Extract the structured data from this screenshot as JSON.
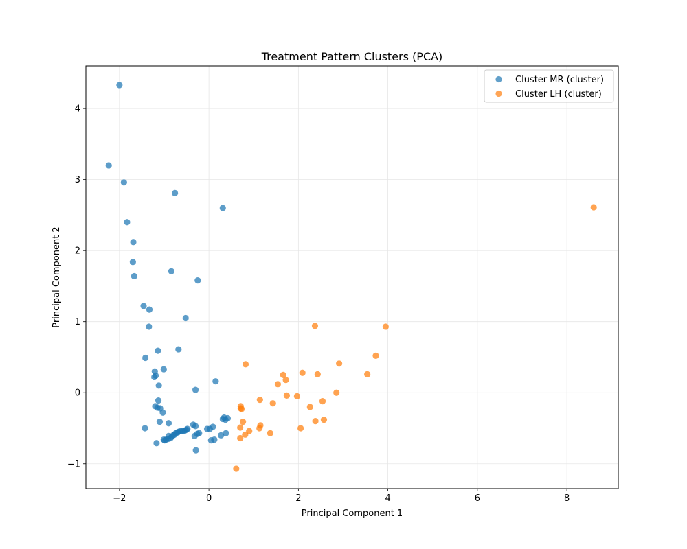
{
  "chart_data": {
    "type": "scatter",
    "title": "Treatment Pattern Clusters (PCA)",
    "xlabel": "Principal Component 1",
    "ylabel": "Principal Component 2",
    "xlim": [
      -2.75,
      9.15
    ],
    "ylim": [
      -1.35,
      4.6
    ],
    "xticks": [
      -2,
      0,
      2,
      4,
      6,
      8
    ],
    "yticks": [
      -1,
      0,
      1,
      2,
      3,
      4
    ],
    "xtick_labels": [
      "−2",
      "0",
      "2",
      "4",
      "6",
      "8"
    ],
    "ytick_labels": [
      "−1",
      "0",
      "1",
      "2",
      "3",
      "4"
    ],
    "grid": true,
    "legend_position": "top-right",
    "series": [
      {
        "name": "Cluster MR (cluster)",
        "color": "#1f77b4",
        "points": [
          [
            -2.0,
            4.33
          ],
          [
            -2.24,
            3.2
          ],
          [
            -1.9,
            2.96
          ],
          [
            -0.76,
            2.81
          ],
          [
            0.31,
            2.6
          ],
          [
            -1.83,
            2.4
          ],
          [
            -1.69,
            2.12
          ],
          [
            -1.7,
            1.84
          ],
          [
            -1.67,
            1.64
          ],
          [
            -0.84,
            1.71
          ],
          [
            -0.25,
            1.58
          ],
          [
            -1.46,
            1.22
          ],
          [
            -1.33,
            1.17
          ],
          [
            -1.34,
            0.93
          ],
          [
            -0.52,
            1.05
          ],
          [
            -0.68,
            0.61
          ],
          [
            -1.14,
            0.59
          ],
          [
            -1.42,
            0.49
          ],
          [
            -1.01,
            0.33
          ],
          [
            -1.21,
            0.3
          ],
          [
            -1.22,
            0.22
          ],
          [
            -1.19,
            0.24
          ],
          [
            0.15,
            0.16
          ],
          [
            -0.3,
            0.04
          ],
          [
            -1.12,
            0.1
          ],
          [
            -1.13,
            -0.11
          ],
          [
            -1.2,
            -0.19
          ],
          [
            -1.15,
            -0.21
          ],
          [
            -1.09,
            -0.22
          ],
          [
            -1.03,
            -0.28
          ],
          [
            0.34,
            -0.35
          ],
          [
            0.31,
            -0.37
          ],
          [
            0.37,
            -0.38
          ],
          [
            0.42,
            -0.36
          ],
          [
            -1.1,
            -0.41
          ],
          [
            -0.9,
            -0.43
          ],
          [
            -0.35,
            -0.45
          ],
          [
            -0.3,
            -0.47
          ],
          [
            -1.43,
            -0.5
          ],
          [
            0.09,
            -0.48
          ],
          [
            -0.04,
            -0.51
          ],
          [
            0.02,
            -0.51
          ],
          [
            -0.48,
            -0.51
          ],
          [
            -0.5,
            -0.52
          ],
          [
            -0.53,
            -0.53
          ],
          [
            -0.56,
            -0.54
          ],
          [
            -0.6,
            -0.54
          ],
          [
            -0.64,
            -0.54
          ],
          [
            -0.68,
            -0.55
          ],
          [
            -0.7,
            -0.56
          ],
          [
            -0.74,
            -0.57
          ],
          [
            -0.77,
            -0.59
          ],
          [
            -0.8,
            -0.6
          ],
          [
            -0.26,
            -0.58
          ],
          [
            -0.22,
            -0.57
          ],
          [
            -0.32,
            -0.61
          ],
          [
            0.27,
            -0.6
          ],
          [
            0.38,
            -0.57
          ],
          [
            -0.9,
            -0.61
          ],
          [
            -0.83,
            -0.62
          ],
          [
            -0.86,
            -0.64
          ],
          [
            -0.91,
            -0.65
          ],
          [
            -0.96,
            -0.66
          ],
          [
            -1.01,
            -0.66
          ],
          [
            -0.99,
            -0.67
          ],
          [
            0.05,
            -0.67
          ],
          [
            0.12,
            -0.66
          ],
          [
            -1.17,
            -0.71
          ],
          [
            -0.29,
            -0.81
          ]
        ]
      },
      {
        "name": "Cluster LH (cluster)",
        "color": "#ff7f0e",
        "points": [
          [
            8.6,
            2.61
          ],
          [
            2.37,
            0.94
          ],
          [
            3.95,
            0.93
          ],
          [
            3.73,
            0.52
          ],
          [
            2.91,
            0.41
          ],
          [
            0.82,
            0.4
          ],
          [
            2.09,
            0.28
          ],
          [
            2.43,
            0.26
          ],
          [
            3.54,
            0.26
          ],
          [
            1.66,
            0.25
          ],
          [
            1.72,
            0.18
          ],
          [
            1.54,
            0.12
          ],
          [
            2.85,
            0.0
          ],
          [
            1.74,
            -0.04
          ],
          [
            1.97,
            -0.05
          ],
          [
            1.14,
            -0.1
          ],
          [
            2.54,
            -0.12
          ],
          [
            1.43,
            -0.15
          ],
          [
            2.26,
            -0.2
          ],
          [
            0.71,
            -0.19
          ],
          [
            0.73,
            -0.23
          ],
          [
            0.71,
            -0.22
          ],
          [
            2.57,
            -0.38
          ],
          [
            2.38,
            -0.4
          ],
          [
            0.76,
            -0.41
          ],
          [
            1.15,
            -0.46
          ],
          [
            1.13,
            -0.5
          ],
          [
            0.7,
            -0.49
          ],
          [
            2.05,
            -0.5
          ],
          [
            0.9,
            -0.54
          ],
          [
            1.37,
            -0.57
          ],
          [
            0.81,
            -0.59
          ],
          [
            0.7,
            -0.64
          ],
          [
            0.61,
            -1.07
          ]
        ]
      }
    ]
  }
}
